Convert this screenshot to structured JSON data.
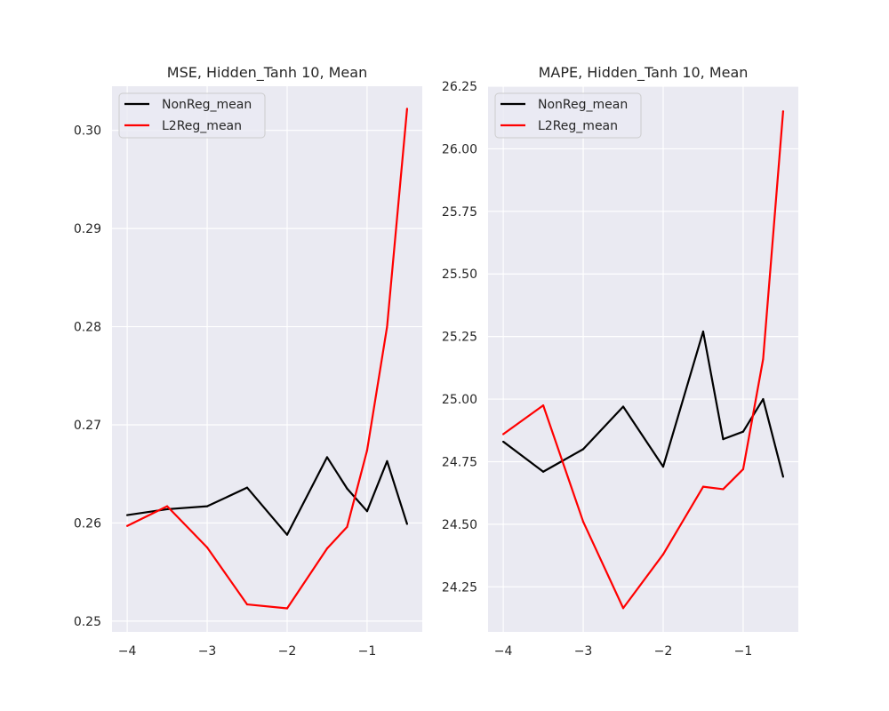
{
  "chart_data": [
    {
      "type": "line",
      "title": "MSE, Hidden_Tanh 10, Mean",
      "xlabel": "",
      "ylabel": "",
      "xlim": [
        -4.19,
        -0.31
      ],
      "ylim": [
        0.2489,
        0.3045
      ],
      "xticks": [
        -4,
        -3,
        -2,
        -1
      ],
      "xtick_labels": [
        "−4",
        "−3",
        "−2",
        "−1"
      ],
      "yticks": [
        0.25,
        0.26,
        0.27,
        0.28,
        0.29,
        0.3
      ],
      "ytick_labels": [
        "0.25",
        "0.26",
        "0.27",
        "0.28",
        "0.29",
        "0.30"
      ],
      "grid": true,
      "legend": "top-left",
      "x": [
        -4,
        -3.5,
        -3,
        -2.5,
        -2,
        -1.5,
        -1.25,
        -1,
        -0.75,
        -0.5
      ],
      "series": [
        {
          "name": "NonReg_mean",
          "color": "#000000",
          "values": [
            0.2608,
            0.2614,
            0.2617,
            0.2636,
            0.2588,
            0.2667,
            0.2635,
            0.2612,
            0.2663,
            0.2599
          ]
        },
        {
          "name": "L2Reg_mean",
          "color": "#ff0000",
          "values": [
            0.2597,
            0.2617,
            0.2575,
            0.2517,
            0.2513,
            0.2574,
            0.2596,
            0.2674,
            0.28,
            0.3022
          ]
        }
      ]
    },
    {
      "type": "line",
      "title": "MAPE, Hidden_Tanh 10, Mean",
      "xlabel": "",
      "ylabel": "",
      "xlim": [
        -4.19,
        -0.31
      ],
      "ylim": [
        24.07,
        26.25
      ],
      "xticks": [
        -4,
        -3,
        -2,
        -1
      ],
      "xtick_labels": [
        "−4",
        "−3",
        "−2",
        "−1"
      ],
      "yticks": [
        24.25,
        24.5,
        24.75,
        25.0,
        25.25,
        25.5,
        25.75,
        26.0,
        26.25
      ],
      "ytick_labels": [
        "24.25",
        "24.50",
        "24.75",
        "25.00",
        "25.25",
        "25.50",
        "25.75",
        "26.00",
        "26.25"
      ],
      "grid": true,
      "legend": "top-left",
      "x": [
        -4,
        -3.5,
        -3,
        -2.5,
        -2,
        -1.5,
        -1.25,
        -1,
        -0.75,
        -0.5
      ],
      "series": [
        {
          "name": "NonReg_mean",
          "color": "#000000",
          "values": [
            24.83,
            24.71,
            24.8,
            24.97,
            24.73,
            25.27,
            24.84,
            24.87,
            25.0,
            24.69
          ]
        },
        {
          "name": "L2Reg_mean",
          "color": "#ff0000",
          "values": [
            24.86,
            24.975,
            24.51,
            24.165,
            24.38,
            24.65,
            24.64,
            24.72,
            25.16,
            26.15
          ]
        }
      ]
    }
  ]
}
